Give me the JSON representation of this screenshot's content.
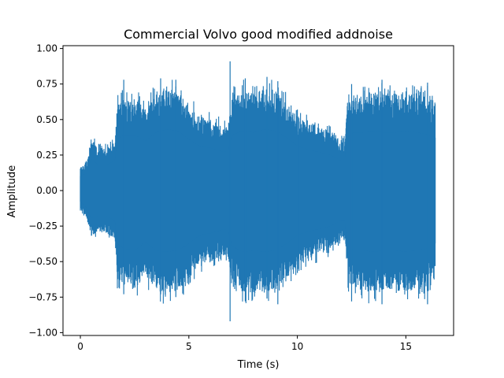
{
  "chart_data": {
    "type": "line",
    "title": "Commercial Volvo good modified addnoise",
    "xlabel": "Time (s)",
    "ylabel": "Amplitude",
    "xlim": [
      -0.8,
      17.2
    ],
    "ylim": [
      -1.02,
      1.02
    ],
    "x_ticks": [
      0,
      5,
      10,
      15
    ],
    "x_tick_labels": [
      "0",
      "5",
      "10",
      "15"
    ],
    "y_ticks": [
      -1.0,
      -0.75,
      -0.5,
      -0.25,
      0.0,
      0.25,
      0.5,
      0.75,
      1.0
    ],
    "y_tick_labels": [
      "−1.00",
      "−0.75",
      "−0.50",
      "−0.25",
      "0.00",
      "0.25",
      "0.50",
      "0.75",
      "1.00"
    ],
    "grid": false,
    "series_color": "#1f77b4",
    "duration_s": 16.35,
    "envelope": {
      "t": [
        0,
        0.3,
        0.5,
        0.8,
        1.2,
        1.6,
        1.7,
        2.0,
        2.5,
        3.0,
        3.5,
        4.0,
        4.5,
        5.0,
        5.5,
        6.0,
        6.5,
        6.8,
        7.0,
        7.5,
        8.0,
        8.5,
        9.0,
        9.5,
        10.0,
        10.5,
        11.0,
        11.5,
        12.0,
        12.2,
        12.3,
        12.6,
        13.0,
        13.5,
        14.0,
        14.5,
        15.0,
        15.5,
        16.0,
        16.35
      ],
      "max": [
        0.17,
        0.2,
        0.37,
        0.3,
        0.3,
        0.35,
        0.6,
        0.65,
        0.65,
        0.58,
        0.68,
        0.72,
        0.7,
        0.6,
        0.52,
        0.5,
        0.46,
        0.45,
        0.65,
        0.7,
        0.68,
        0.72,
        0.7,
        0.62,
        0.52,
        0.48,
        0.45,
        0.42,
        0.35,
        0.35,
        0.62,
        0.68,
        0.68,
        0.7,
        0.68,
        0.68,
        0.7,
        0.68,
        0.66,
        0.62
      ],
      "min": [
        -0.13,
        -0.2,
        -0.32,
        -0.3,
        -0.3,
        -0.35,
        -0.62,
        -0.68,
        -0.7,
        -0.6,
        -0.7,
        -0.72,
        -0.7,
        -0.62,
        -0.52,
        -0.5,
        -0.46,
        -0.45,
        -0.65,
        -0.72,
        -0.7,
        -0.72,
        -0.7,
        -0.62,
        -0.52,
        -0.48,
        -0.45,
        -0.42,
        -0.35,
        -0.35,
        -0.62,
        -0.7,
        -0.7,
        -0.72,
        -0.7,
        -0.7,
        -0.72,
        -0.7,
        -0.68,
        -0.62
      ]
    },
    "peaks": [
      {
        "t": 6.9,
        "max": 0.91,
        "min": -0.92
      },
      {
        "t": 7.6,
        "max": 0.79,
        "min": -0.78
      },
      {
        "t": 3.7,
        "max": 0.79,
        "min": -0.73
      },
      {
        "t": 4.4,
        "max": 0.78,
        "min": -0.75
      },
      {
        "t": 13.9,
        "max": 0.78,
        "min": -0.8
      },
      {
        "t": 12.5,
        "max": 0.75,
        "min": -0.78
      },
      {
        "t": 2.0,
        "max": 0.78,
        "min": -0.73
      },
      {
        "t": 16.0,
        "max": 0.76,
        "min": -0.8
      },
      {
        "t": 10.0,
        "max": 0.57,
        "min": -0.58
      },
      {
        "t": 8.6,
        "max": 0.8,
        "min": -0.76
      },
      {
        "t": 9.1,
        "max": 0.77,
        "min": -0.8
      }
    ]
  }
}
